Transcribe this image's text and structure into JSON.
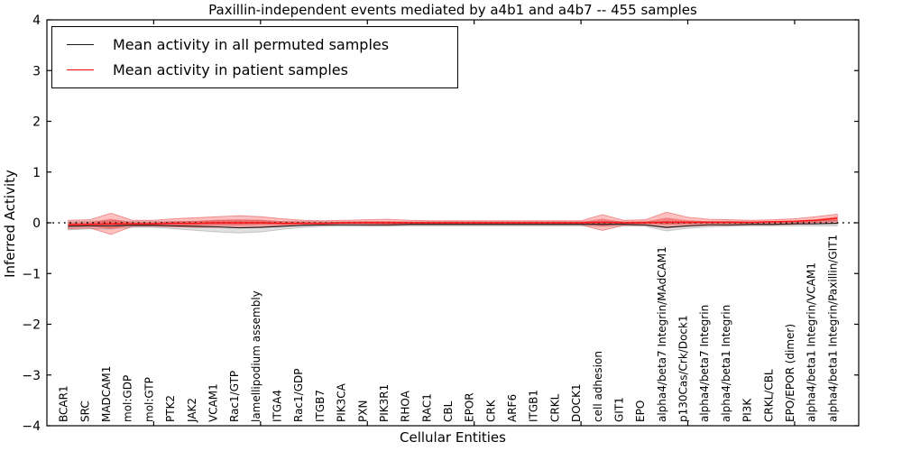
{
  "figure": {
    "title": "Paxillin-independent events mediated by a4b1 and a4b7 -- 455 samples",
    "xlabel": "Cellular Entities",
    "ylabel": "Inferred Activity",
    "legend": [
      {
        "label": "Mean activity in all permuted samples",
        "color": "#1a1a1a"
      },
      {
        "label": "Mean activity in patient samples",
        "color": "#ff0000"
      }
    ]
  },
  "chart_data": {
    "type": "line",
    "title": "Paxillin-independent events mediated by a4b1 and a4b7 -- 455 samples",
    "xlabel": "Cellular Entities",
    "ylabel": "Inferred Activity",
    "ylim": [
      -4,
      4
    ],
    "yticks": [
      -4,
      -3,
      -2,
      -1,
      0,
      1,
      2,
      3,
      4
    ],
    "xticks_major": [
      5,
      10,
      15,
      20,
      25,
      30,
      35
    ],
    "grid": false,
    "legend_position": "upper left",
    "zero_line": {
      "y": 0,
      "style": "dotted",
      "color": "#000000"
    },
    "categories": [
      "BCAR1",
      "SRC",
      "MADCAM1",
      "mol:GDP",
      "mol:GTP",
      "PTK2",
      "JAK2",
      "VCAM1",
      "Rac1/GTP",
      "lamellipodium assembly",
      "ITGA4",
      "Rac1/GDP",
      "ITGB7",
      "PIK3CA",
      "PXN",
      "PIK3R1",
      "RHOA",
      "RAC1",
      "CBL",
      "EPOR",
      "CRK",
      "ARF6",
      "ITGB1",
      "CRKL",
      "DOCK1",
      "cell adhesion",
      "GIT1",
      "EPO",
      "alpha4/beta7 Integrin/MAdCAM1",
      "p130Cas/Crk/Dock1",
      "alpha4/beta7 Integrin",
      "alpha4/beta1 Integrin",
      "PI3K",
      "CRKL/CBL",
      "EPO/EPOR (dimer)",
      "alpha4/beta1 Integrin/VCAM1",
      "alpha4/beta1 Integrin/Paxillin/GIT1"
    ],
    "series": [
      {
        "name": "Mean activity in all permuted samples",
        "color": "#1a1a1a",
        "width": 1.1,
        "values": [
          -0.07,
          -0.06,
          -0.06,
          -0.05,
          -0.05,
          -0.06,
          -0.07,
          -0.08,
          -0.1,
          -0.09,
          -0.07,
          -0.05,
          -0.04,
          -0.04,
          -0.04,
          -0.04,
          -0.03,
          -0.03,
          -0.03,
          -0.03,
          -0.03,
          -0.03,
          -0.03,
          -0.03,
          -0.03,
          -0.03,
          -0.03,
          -0.04,
          -0.09,
          -0.06,
          -0.04,
          -0.04,
          -0.03,
          -0.03,
          -0.02,
          -0.02,
          -0.01
        ]
      },
      {
        "name": "Mean activity in patient samples",
        "color": "#ff1414",
        "width": 1.5,
        "values": [
          -0.04,
          -0.03,
          -0.02,
          -0.02,
          -0.02,
          -0.01,
          -0.01,
          0.0,
          0.0,
          0.0,
          -0.01,
          -0.01,
          -0.01,
          0.0,
          0.0,
          0.0,
          0.0,
          0.0,
          0.0,
          0.0,
          0.0,
          0.0,
          0.0,
          0.0,
          0.0,
          0.01,
          0.0,
          0.0,
          0.01,
          0.01,
          0.01,
          0.01,
          0.01,
          0.02,
          0.03,
          0.05,
          0.09
        ]
      }
    ],
    "bands": [
      {
        "name": "permuted-sample-range",
        "fill": "rgba(100,100,100,0.20)",
        "stroke": "rgba(100,100,100,0.30)",
        "upper": [
          0.02,
          0.03,
          0.04,
          0.03,
          0.03,
          0.03,
          0.03,
          0.04,
          0.04,
          0.04,
          0.03,
          0.03,
          0.02,
          0.02,
          0.02,
          0.02,
          0.02,
          0.02,
          0.02,
          0.02,
          0.02,
          0.02,
          0.02,
          0.02,
          0.02,
          0.03,
          0.02,
          0.02,
          0.03,
          0.03,
          0.03,
          0.03,
          0.02,
          0.03,
          0.03,
          0.04,
          0.05
        ],
        "lower": [
          -0.14,
          -0.12,
          -0.12,
          -0.09,
          -0.09,
          -0.12,
          -0.15,
          -0.18,
          -0.2,
          -0.18,
          -0.13,
          -0.09,
          -0.07,
          -0.07,
          -0.07,
          -0.07,
          -0.06,
          -0.06,
          -0.06,
          -0.06,
          -0.06,
          -0.06,
          -0.06,
          -0.06,
          -0.06,
          -0.07,
          -0.06,
          -0.07,
          -0.16,
          -0.11,
          -0.08,
          -0.07,
          -0.06,
          -0.06,
          -0.06,
          -0.06,
          -0.06
        ]
      },
      {
        "name": "patient-sample-range-outer",
        "fill": "rgba(255,45,45,0.30)",
        "stroke": "rgba(220,35,35,0.45)",
        "upper": [
          0.05,
          0.06,
          0.19,
          0.05,
          0.05,
          0.08,
          0.1,
          0.12,
          0.14,
          0.12,
          0.08,
          0.05,
          0.04,
          0.05,
          0.06,
          0.07,
          0.05,
          0.04,
          0.04,
          0.04,
          0.04,
          0.04,
          0.04,
          0.04,
          0.04,
          0.16,
          0.05,
          0.06,
          0.21,
          0.11,
          0.07,
          0.06,
          0.05,
          0.06,
          0.08,
          0.12,
          0.17
        ],
        "lower": [
          -0.12,
          -0.1,
          -0.23,
          -0.07,
          -0.07,
          -0.08,
          -0.09,
          -0.09,
          -0.09,
          -0.08,
          -0.06,
          -0.05,
          -0.05,
          -0.04,
          -0.05,
          -0.05,
          -0.04,
          -0.04,
          -0.04,
          -0.04,
          -0.04,
          -0.04,
          -0.04,
          -0.04,
          -0.04,
          -0.15,
          -0.05,
          -0.05,
          -0.1,
          -0.07,
          -0.05,
          -0.05,
          -0.04,
          -0.04,
          -0.03,
          -0.02,
          0.0
        ]
      },
      {
        "name": "patient-sample-range-inner",
        "fill": "rgba(235,30,30,0.38)",
        "stroke": "none",
        "upper": [
          0.0,
          0.01,
          0.08,
          0.01,
          0.01,
          0.03,
          0.04,
          0.06,
          0.07,
          0.06,
          0.03,
          0.02,
          0.01,
          0.02,
          0.03,
          0.03,
          0.02,
          0.02,
          0.02,
          0.02,
          0.02,
          0.02,
          0.02,
          0.02,
          0.02,
          0.08,
          0.02,
          0.03,
          0.1,
          0.05,
          0.03,
          0.03,
          0.02,
          0.03,
          0.04,
          0.07,
          0.12
        ],
        "lower": [
          -0.08,
          -0.07,
          -0.12,
          -0.05,
          -0.05,
          -0.05,
          -0.05,
          -0.05,
          -0.05,
          -0.04,
          -0.04,
          -0.03,
          -0.03,
          -0.02,
          -0.02,
          -0.03,
          -0.02,
          -0.02,
          -0.02,
          -0.02,
          -0.02,
          -0.02,
          -0.02,
          -0.02,
          -0.02,
          -0.07,
          -0.02,
          -0.02,
          -0.04,
          -0.03,
          -0.02,
          -0.02,
          -0.02,
          -0.01,
          -0.01,
          0.0,
          0.03
        ]
      }
    ],
    "colors": {
      "frame": "#000000",
      "tick": "#000000",
      "text": "#000000"
    }
  }
}
